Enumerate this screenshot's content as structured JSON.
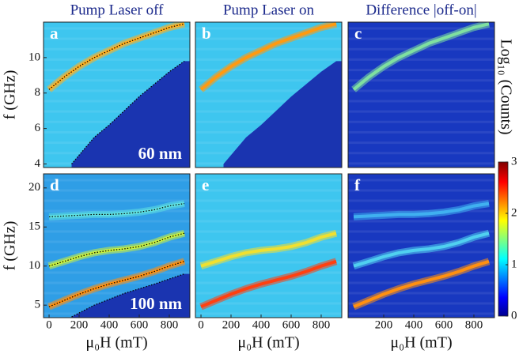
{
  "chart_data": [
    {
      "type": "heatmap",
      "title": "Pump Laser off",
      "label": "a",
      "annotation": "60 nm",
      "ylabel": "f (GHz)",
      "background": "#3ec6ef",
      "xlim": [
        -37,
        937
      ],
      "ylim": [
        3.8,
        12.0
      ],
      "yticks": [
        4,
        6,
        8,
        10
      ],
      "curves": [
        {
          "x": [
            0,
            100,
            200,
            300,
            400,
            500,
            600,
            700,
            800,
            900
          ],
          "values": [
            8.2,
            8.9,
            9.5,
            10.0,
            10.4,
            10.8,
            11.1,
            11.4,
            11.7,
            11.9
          ],
          "color": "#ffb020",
          "dotted": true
        },
        {
          "x": [
            150,
            300,
            400,
            500,
            600,
            700,
            800,
            900
          ],
          "values": [
            4.0,
            5.5,
            6.2,
            7.0,
            7.8,
            8.5,
            9.2,
            9.8
          ],
          "dotted": true,
          "fill_below": "#1a34b0"
        }
      ]
    },
    {
      "type": "heatmap",
      "title": "Pump Laser on",
      "label": "b",
      "background": "#3ec6ef",
      "xlim": [
        -37,
        937
      ],
      "ylim": [
        3.8,
        12.0
      ],
      "curves": [
        {
          "x": [
            0,
            100,
            200,
            300,
            400,
            500,
            600,
            700,
            800,
            900
          ],
          "values": [
            8.2,
            8.9,
            9.5,
            10.0,
            10.4,
            10.8,
            11.1,
            11.4,
            11.7,
            11.9
          ],
          "color": "#ff9a10",
          "dotted": false
        },
        {
          "x": [
            150,
            300,
            400,
            500,
            600,
            700,
            800,
            900
          ],
          "values": [
            4.0,
            5.5,
            6.2,
            7.0,
            7.8,
            8.5,
            9.2,
            9.8
          ],
          "dotted": false,
          "fill_below": "#1a34b0"
        }
      ]
    },
    {
      "type": "heatmap",
      "title": "Difference |off-on|",
      "label": "c",
      "background": "#1838c0",
      "xlim": [
        -37,
        937
      ],
      "ylim": [
        3.8,
        12.0
      ],
      "curves": [
        {
          "x": [
            0,
            100,
            200,
            300,
            400,
            500,
            600,
            700,
            800,
            900
          ],
          "values": [
            8.2,
            8.9,
            9.5,
            10.0,
            10.4,
            10.8,
            11.1,
            11.4,
            11.7,
            11.9
          ],
          "color": "#7fe0a0",
          "dotted": false
        }
      ]
    },
    {
      "type": "heatmap",
      "label": "d",
      "annotation": "100 nm",
      "ylabel": "f (GHz)",
      "xlabel": "μ₀H (mT)",
      "background": "#2f9ee6",
      "xlim": [
        -37,
        937
      ],
      "ylim": [
        3.4,
        21.8
      ],
      "xticks": [
        0,
        200,
        400,
        600,
        800
      ],
      "yticks": [
        5,
        10,
        15,
        20
      ],
      "curves": [
        {
          "x": [
            0,
            100,
            200,
            300,
            400,
            500,
            600,
            700,
            800,
            900
          ],
          "values": [
            16.3,
            16.4,
            16.5,
            16.6,
            16.6,
            16.7,
            16.9,
            17.2,
            17.7,
            18.0
          ],
          "color": "#5fe0e0",
          "dotted": true
        },
        {
          "x": [
            0,
            100,
            200,
            300,
            400,
            500,
            600,
            700,
            800,
            900
          ],
          "values": [
            10.0,
            10.6,
            11.2,
            11.7,
            12.0,
            12.2,
            12.5,
            13.0,
            13.7,
            14.2
          ],
          "color": "#c8f040",
          "dotted": true
        },
        {
          "x": [
            0,
            100,
            200,
            300,
            400,
            500,
            600,
            700,
            800,
            900
          ],
          "values": [
            4.8,
            5.6,
            6.4,
            7.1,
            7.7,
            8.2,
            8.7,
            9.3,
            10.0,
            10.6
          ],
          "color": "#ff9010",
          "dotted": true
        },
        {
          "x": [
            150,
            300,
            500,
            700,
            900
          ],
          "values": [
            3.5,
            5.0,
            6.5,
            7.7,
            9.0
          ],
          "dotted": true,
          "fill_below": "#1a34b0"
        }
      ]
    },
    {
      "type": "heatmap",
      "label": "e",
      "xlabel": "μ₀H (mT)",
      "background": "#3ec6ef",
      "xlim": [
        -37,
        937
      ],
      "ylim": [
        3.4,
        21.8
      ],
      "xticks": [
        0,
        200,
        400,
        600,
        800
      ],
      "curves": [
        {
          "x": [
            0,
            100,
            200,
            300,
            400,
            500,
            600,
            700,
            800,
            900
          ],
          "values": [
            10.0,
            10.6,
            11.2,
            11.7,
            12.0,
            12.2,
            12.5,
            13.0,
            13.7,
            14.2
          ],
          "color": "#f0e030",
          "dotted": false
        },
        {
          "x": [
            0,
            100,
            200,
            300,
            400,
            500,
            600,
            700,
            800,
            900
          ],
          "values": [
            4.8,
            5.6,
            6.4,
            7.1,
            7.7,
            8.2,
            8.7,
            9.3,
            10.0,
            10.6
          ],
          "color": "#ff4010",
          "dotted": false
        }
      ]
    },
    {
      "type": "heatmap",
      "label": "f",
      "xlabel": "μ₀H (mT)",
      "background": "#1838c0",
      "xlim": [
        -37,
        937
      ],
      "ylim": [
        3.4,
        21.8
      ],
      "xticks": [
        200,
        400,
        600,
        800
      ],
      "curves": [
        {
          "x": [
            0,
            100,
            200,
            300,
            400,
            500,
            600,
            700,
            800,
            900
          ],
          "values": [
            16.3,
            16.4,
            16.5,
            16.6,
            16.6,
            16.7,
            16.9,
            17.2,
            17.7,
            18.0
          ],
          "color": "#40b0f0",
          "dotted": false
        },
        {
          "x": [
            0,
            100,
            200,
            300,
            400,
            500,
            600,
            700,
            800,
            900
          ],
          "values": [
            10.0,
            10.6,
            11.2,
            11.7,
            12.0,
            12.2,
            12.5,
            13.0,
            13.7,
            14.2
          ],
          "color": "#50d0f0",
          "dotted": false
        },
        {
          "x": [
            0,
            100,
            200,
            300,
            400,
            500,
            600,
            700,
            800,
            900
          ],
          "values": [
            4.8,
            5.6,
            6.4,
            7.1,
            7.7,
            8.2,
            8.7,
            9.3,
            10.0,
            10.6
          ],
          "color": "#ff9010",
          "dotted": false
        }
      ]
    }
  ],
  "colorbar": {
    "label": "Log₁₀ (Counts)",
    "lim": [
      0,
      3
    ],
    "ticks": [
      0,
      1,
      2,
      3
    ]
  }
}
